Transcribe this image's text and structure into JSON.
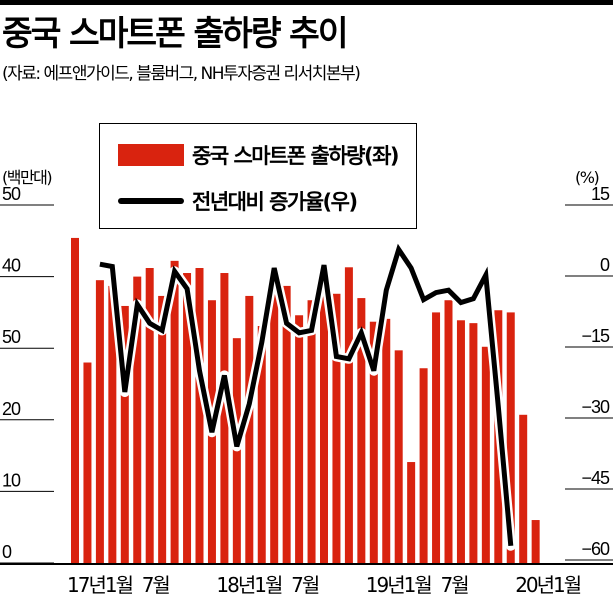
{
  "header": {
    "title": "중국 스마트폰 출하량 추이",
    "source": "(자료: 에프앤가이드, 블룸버그, NH투자증권 리서치본부)"
  },
  "axes": {
    "left_unit": "(백만대)",
    "right_unit": "(%)",
    "left_ticks": [
      "0",
      "10",
      "20",
      "50",
      "40",
      "50"
    ],
    "right_ticks": [
      "-60",
      "-45",
      "-30",
      "-15",
      "0",
      "15"
    ],
    "x_labels": [
      {
        "label": "17년1월",
        "index": 0
      },
      {
        "label": "7월",
        "index": 6
      },
      {
        "label": "18년1월",
        "index": 12
      },
      {
        "label": "7월",
        "index": 18
      },
      {
        "label": "19년1월",
        "index": 24
      },
      {
        "label": "7월",
        "index": 30
      },
      {
        "label": "20년1월",
        "index": 36
      }
    ]
  },
  "legend": {
    "bar_label": "중국 스마트폰 출하량(좌)",
    "line_label": "전년대비 증가율(우)"
  },
  "colors": {
    "bar": "#d9230f",
    "line": "#000000"
  },
  "chart_data": {
    "type": "bar+line",
    "title": "중국 스마트폰 출하량 추이",
    "subtitle": "(자료: 에프앤가이드, 블룸버그, NH투자증권 리서치본부)",
    "xlabel": "",
    "ylabel_left": "(백만대)",
    "ylabel_right": "(%)",
    "ylim_left": [
      0,
      50
    ],
    "ylim_right": [
      -60,
      15
    ],
    "left_tick_labels": [
      "0",
      "10",
      "20",
      "50",
      "40",
      "50"
    ],
    "right_tick_labels": [
      "-60",
      "-45",
      "-30",
      "-15",
      "0",
      "15"
    ],
    "grid": false,
    "legend_position": "top-center",
    "categories": [
      "2017-01",
      "2017-02",
      "2017-03",
      "2017-04",
      "2017-05",
      "2017-06",
      "2017-07",
      "2017-08",
      "2017-09",
      "2017-10",
      "2017-11",
      "2017-12",
      "2018-01",
      "2018-02",
      "2018-03",
      "2018-04",
      "2018-05",
      "2018-06",
      "2018-07",
      "2018-08",
      "2018-09",
      "2018-10",
      "2018-11",
      "2018-12",
      "2019-01",
      "2019-02",
      "2019-03",
      "2019-04",
      "2019-05",
      "2019-06",
      "2019-07",
      "2019-08",
      "2019-09",
      "2019-10",
      "2019-11",
      "2019-12",
      "2020-01",
      "2020-02"
    ],
    "x_tick_labels": [
      "17년1월",
      "7월",
      "18년1월",
      "7월",
      "19년1월",
      "7월",
      "20년1월"
    ],
    "series": [
      {
        "name": "중국 스마트폰 출하량(좌)",
        "type": "bar",
        "axis": "left",
        "values": [
          45.4,
          28.0,
          39.5,
          38.7,
          35.9,
          40.0,
          41.2,
          37.3,
          42.2,
          40.5,
          41.2,
          36.7,
          40.5,
          31.4,
          37.3,
          33.1,
          38.1,
          38.7,
          34.6,
          36.7,
          41.2,
          37.6,
          41.3,
          37.0,
          33.7,
          34.1,
          29.7,
          14.1,
          27.2,
          35.0,
          36.7,
          33.9,
          33.5,
          30.2,
          35.3,
          35.0,
          20.7,
          6.0
        ]
      },
      {
        "name": "전년대비 증가율(우)",
        "type": "line",
        "axis": "right",
        "start_index": 2,
        "values": [
          2.5,
          2.0,
          -24.5,
          -6.0,
          -10.0,
          -11.5,
          1.0,
          -2.7,
          -20.0,
          -33.0,
          -21.0,
          -36.0,
          -27.0,
          -14.0,
          1.7,
          -10.0,
          -12.0,
          -11.5,
          2.3,
          -17.0,
          -17.5,
          -12.0,
          -20.0,
          -3.0,
          5.6,
          1.7,
          -5.0,
          -3.5,
          -3.0,
          -5.6,
          -4.8,
          0.2,
          -27.6,
          -57.0
        ]
      }
    ]
  }
}
